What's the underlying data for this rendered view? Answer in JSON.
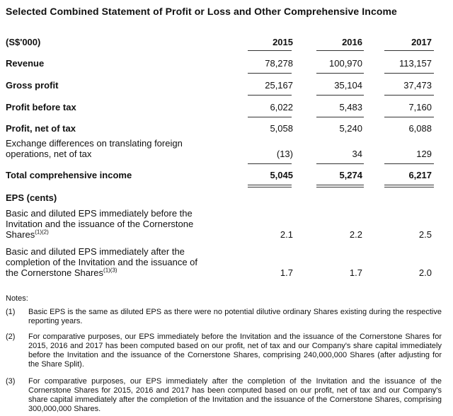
{
  "title": "Selected Combined Statement of Profit or Loss and Other Comprehensive Income",
  "header": {
    "unit": "(S$'000)",
    "years": [
      "2015",
      "2016",
      "2017"
    ]
  },
  "rows": {
    "revenue": {
      "label": "Revenue",
      "values": [
        "78,278",
        "100,970",
        "113,157"
      ]
    },
    "gross_profit": {
      "label": "Gross profit",
      "values": [
        "25,167",
        "35,104",
        "37,473"
      ]
    },
    "profit_before_tax": {
      "label": "Profit before tax",
      "values": [
        "6,022",
        "5,483",
        "7,160"
      ]
    },
    "profit_net": {
      "label": "Profit, net of tax",
      "values": [
        "5,058",
        "5,240",
        "6,088"
      ]
    },
    "exchange": {
      "label_line1": "Exchange differences on translating foreign",
      "label_line2": "operations, net of tax",
      "values": [
        "(13)",
        "34",
        "129"
      ]
    },
    "total": {
      "label": "Total comprehensive income",
      "values": [
        "5,045",
        "5,274",
        "6,217"
      ]
    }
  },
  "eps": {
    "heading": "EPS (cents)",
    "before": {
      "line1": "Basic and diluted EPS immediately before the",
      "line2": "Invitation and the issuance of the Cornerstone",
      "line3": "Shares",
      "sup": "(1)(2)",
      "values": [
        "2.1",
        "2.2",
        "2.5"
      ]
    },
    "after": {
      "line1": "Basic and diluted EPS immediately after the",
      "line2": "completion of the Invitation and the issuance of",
      "line3": "the Cornerstone Shares",
      "sup": "(1)(3)",
      "values": [
        "1.7",
        "1.7",
        "2.0"
      ]
    }
  },
  "notes": {
    "heading": "Notes:",
    "items": [
      {
        "num": "(1)",
        "text": "Basic EPS is the same as diluted EPS as there were no potential dilutive ordinary Shares existing during the respective reporting years."
      },
      {
        "num": "(2)",
        "text": "For comparative purposes, our EPS immediately before the Invitation and the issuance of the Cornerstone Shares for 2015, 2016 and 2017 has been computed based on our profit, net of tax and our Company's share capital immediately before the Invitation and the issuance of the Cornerstone Shares, comprising 240,000,000 Shares (after adjusting for the Share Split)."
      },
      {
        "num": "(3)",
        "text": "For comparative purposes, our EPS immediately after the completion of the Invitation and the issuance of the Cornerstone Shares for 2015, 2016 and 2017 has been computed based on our profit, net of tax and our Company's share capital immediately after the completion of the Invitation and the issuance of the Cornerstone Shares, comprising 300,000,000 Shares."
      }
    ]
  }
}
